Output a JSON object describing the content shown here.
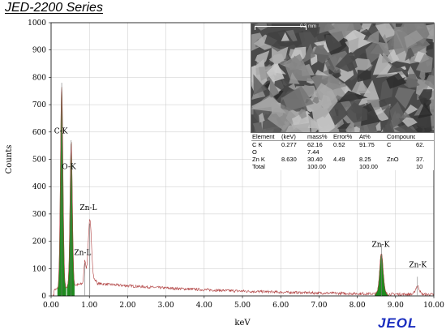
{
  "header": {
    "series_title": "JED-2200 Series"
  },
  "logo_text": "JEOL",
  "chart_data": {
    "type": "area",
    "xlabel": "keV",
    "ylabel": "Counts",
    "xlim": [
      0,
      10
    ],
    "ylim": [
      0,
      1000
    ],
    "x_ticks": [
      "0.00",
      "1.00",
      "2.00",
      "3.00",
      "4.00",
      "5.00",
      "6.00",
      "7.00",
      "8.00",
      "9.00",
      "10.00"
    ],
    "y_ticks": [
      "0",
      "100",
      "200",
      "300",
      "400",
      "500",
      "600",
      "700",
      "800",
      "900",
      "1000"
    ],
    "grid": true,
    "peaks": [
      {
        "label": "C-K",
        "energy": 0.277,
        "height": 740
      },
      {
        "label": "O-K",
        "energy": 0.525,
        "height": 530
      },
      {
        "label": "Zn-L",
        "energy": 1.012,
        "height": 225
      },
      {
        "label": "Zn-L",
        "energy": 0.884,
        "height": 80
      },
      {
        "label": "Zn-K",
        "energy": 8.63,
        "height": 150
      },
      {
        "label": "Zn-K",
        "energy": 9.572,
        "height": 30
      }
    ],
    "peak_label_positions": [
      {
        "text": "C-K",
        "energy": 0.08,
        "count": 595
      },
      {
        "text": "O-K",
        "energy": 0.28,
        "count": 465
      },
      {
        "text": "Zn-L",
        "energy": 0.75,
        "count": 315
      },
      {
        "text": "Zn-L",
        "energy": 0.6,
        "count": 150
      },
      {
        "text": "Zn-K",
        "energy": 8.38,
        "count": 180
      },
      {
        "text": "Zn-K",
        "energy": 9.35,
        "count": 105
      }
    ],
    "fill_color": "#1f8a1f",
    "line_color": "#b04040"
  },
  "sem_image": {
    "scale_label": "0.3 mm"
  },
  "results_table": {
    "headers": [
      "Element",
      "(keV)",
      "mass%",
      "Error%",
      "At%",
      "Compound",
      ""
    ],
    "rows": [
      [
        "C  K",
        "0.277",
        "62.16",
        "0.52",
        "91.75",
        "C",
        "62."
      ],
      [
        "O",
        "",
        "7.44",
        "",
        "",
        "",
        ""
      ],
      [
        "Zn K",
        "8.630",
        "30.40",
        "4.49",
        "8.25",
        "ZnO",
        "37."
      ],
      [
        "Total",
        "",
        "100.00",
        "",
        "100.00",
        "",
        "10"
      ]
    ]
  }
}
